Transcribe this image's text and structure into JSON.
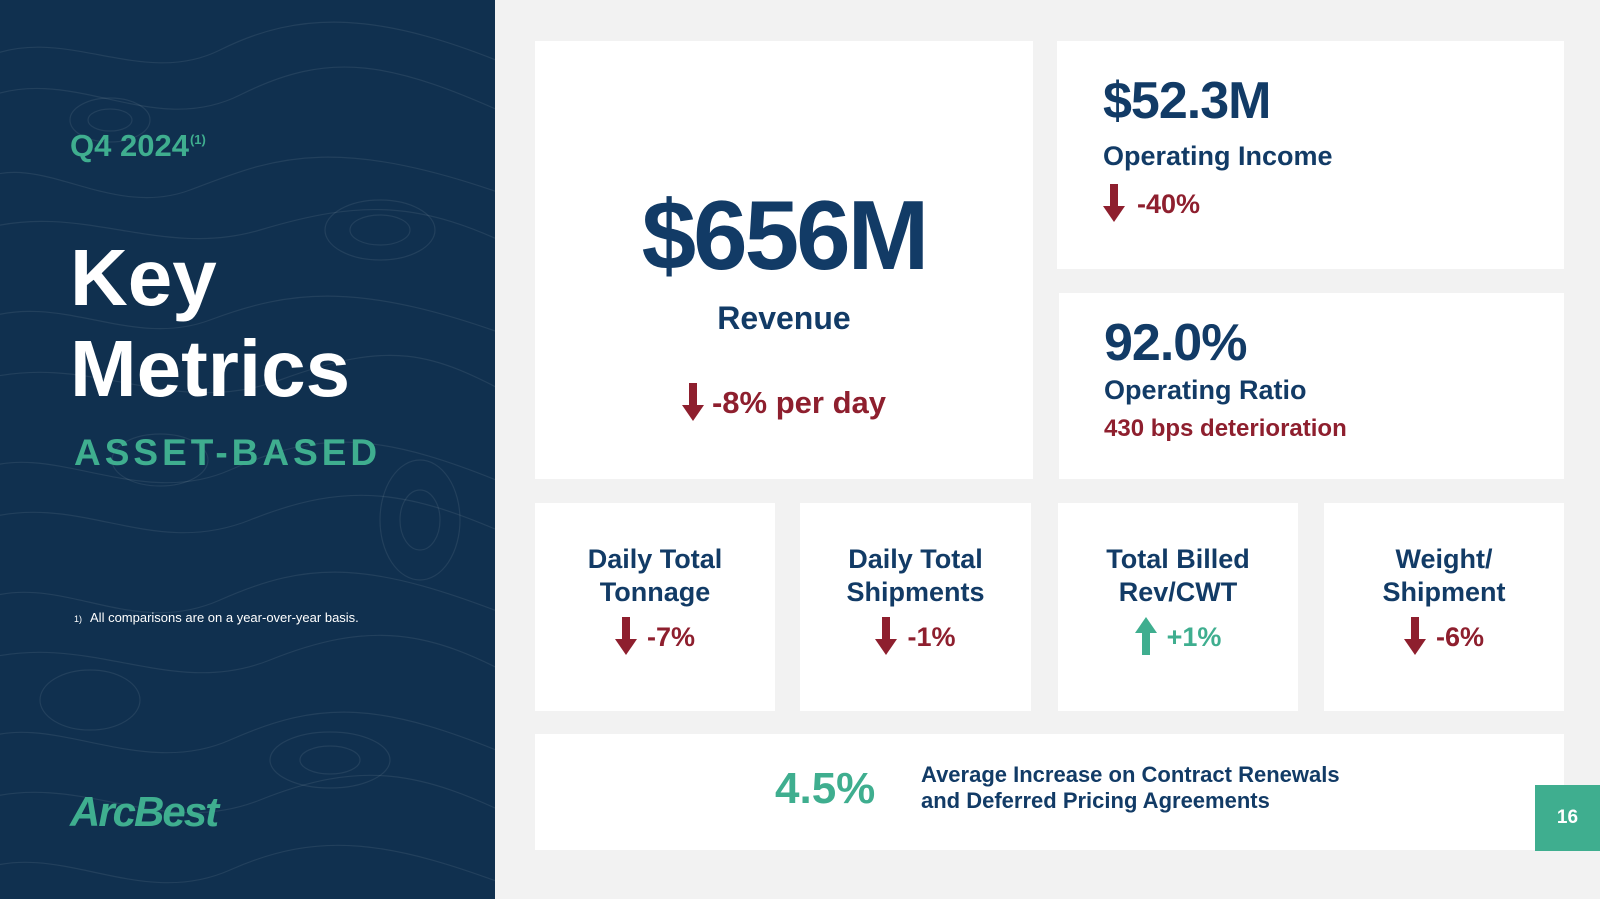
{
  "sidebar": {
    "quarter": "Q4 2024",
    "quarter_sup": "(1)",
    "title_line1": "Key",
    "title_line2": "Metrics",
    "subtitle": "ASSET-BASED",
    "footnote_mark": "1)",
    "footnote_text": "All comparisons are on a year-over-year basis.",
    "logo_text": "ArcBest"
  },
  "revenue": {
    "value": "$656M",
    "label": "Revenue",
    "change": "-8% per day",
    "direction": "down"
  },
  "operating_income": {
    "value": "$52.3M",
    "label": "Operating Income",
    "change": "-40%",
    "direction": "down"
  },
  "operating_ratio": {
    "value": "92.0%",
    "label": "Operating Ratio",
    "change": "430 bps deterioration"
  },
  "metrics": [
    {
      "line1": "Daily Total",
      "line2": "Tonnage",
      "change": "-7%",
      "direction": "down"
    },
    {
      "line1": "Daily Total",
      "line2": "Shipments",
      "change": "-1%",
      "direction": "down"
    },
    {
      "line1": "Total Billed",
      "line2": "Rev/CWT",
      "change": "+1%",
      "direction": "up"
    },
    {
      "line1": "Weight/",
      "line2": "Shipment",
      "change": "-6%",
      "direction": "down"
    }
  ],
  "pricing": {
    "value": "4.5%",
    "label_line1": "Average Increase on Contract Renewals",
    "label_line2": "and Deferred Pricing Agreements"
  },
  "page_number": "16",
  "colors": {
    "navy": "#123b66",
    "sidebar": "#10304f",
    "green": "#3fae8f",
    "red": "#8e1f2e",
    "background": "#f2f2f2"
  },
  "icons": {
    "down": "arrow-down-icon",
    "up": "arrow-up-icon"
  }
}
